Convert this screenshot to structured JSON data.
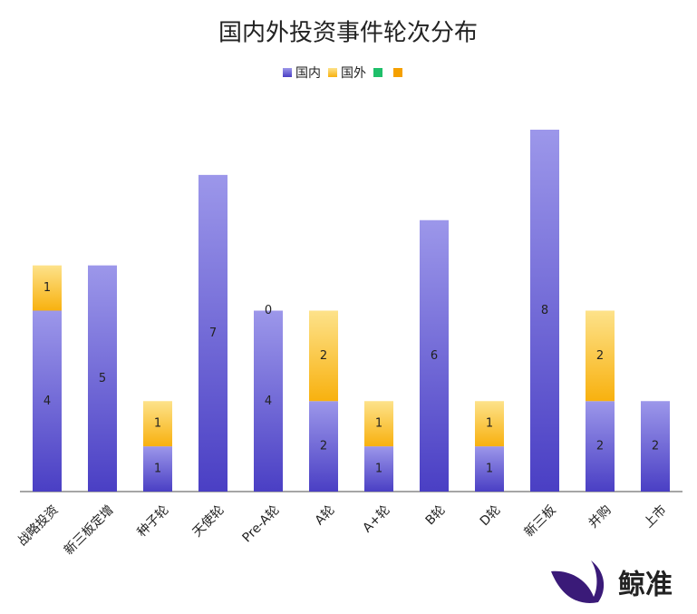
{
  "chart_data": {
    "type": "stacked_bar",
    "title": "国内外投资事件轮次分布",
    "categories": [
      "战略投资",
      "新三板定增",
      "种子轮",
      "天使轮",
      "Pre-A轮",
      "A轮",
      "A+轮",
      "B轮",
      "D轮",
      "新三板",
      "并购",
      "上市"
    ],
    "series": [
      {
        "name": "国内",
        "color": "#4a3fc4",
        "color_top": "#9c97ea",
        "values": [
          4,
          5,
          1,
          7,
          4,
          2,
          1,
          6,
          1,
          8,
          2,
          2
        ]
      },
      {
        "name": "国外",
        "color": "#f8b10f",
        "color_top": "#fde28a",
        "values": [
          1,
          null,
          1,
          null,
          0,
          2,
          1,
          null,
          1,
          null,
          2,
          null
        ]
      },
      {
        "color": "#1fbf6a",
        "values": [
          null,
          null,
          null,
          null,
          null,
          null,
          null,
          null,
          null,
          null,
          null,
          null
        ]
      },
      {
        "color": "#f5a000",
        "values": [
          null,
          null,
          null,
          null,
          null,
          null,
          null,
          null,
          null,
          null,
          null,
          null
        ]
      }
    ],
    "ylim": [
      0,
      8
    ],
    "legend": "top",
    "watermark": "鲸准"
  }
}
